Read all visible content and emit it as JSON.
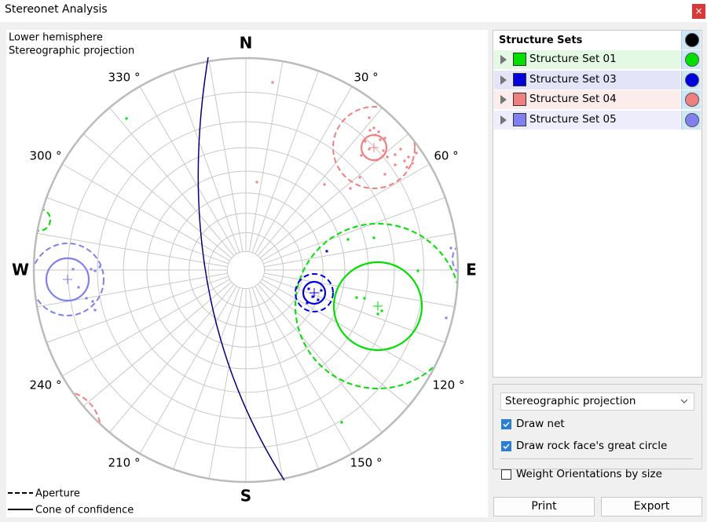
{
  "window": {
    "title": "Stereonet Analysis"
  },
  "stereonet": {
    "info": [
      "Lower hemisphere",
      "Stereographic projection"
    ],
    "directions": {
      "north": "N",
      "south": "S",
      "west": "W",
      "east": "E"
    },
    "azimuth_labels": [
      "330 °",
      "30 °",
      "300 °",
      "60 °",
      "240 °",
      "120 °",
      "210 °",
      "150 °"
    ],
    "legend": [
      "Aperture",
      "Cone of confidence"
    ]
  },
  "structure_sets": {
    "header": "Structure Sets",
    "items": [
      {
        "name": "Structure Set 01",
        "color": "#00e000"
      },
      {
        "name": "Structure Set 03",
        "color": "#0000dd"
      },
      {
        "name": "Structure Set 04",
        "color": "#f08080"
      },
      {
        "name": "Structure Set 05",
        "color": "#8080f0"
      }
    ]
  },
  "options": {
    "projection": "Stereographic projection",
    "checkboxes": [
      {
        "label": "Draw net",
        "checked": true
      },
      {
        "label": "Draw rock face's great circle",
        "checked": true
      },
      {
        "label": "Weight Orientations by size",
        "checked": false
      }
    ]
  },
  "buttons": [
    "Print",
    "Export"
  ]
}
